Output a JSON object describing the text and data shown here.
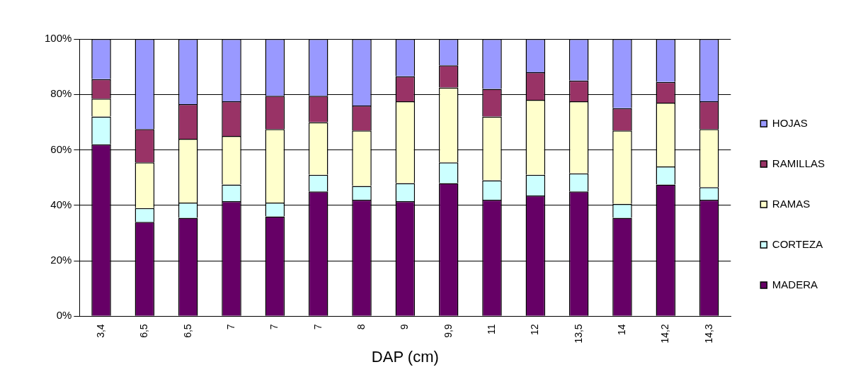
{
  "chart_data": {
    "type": "bar",
    "stacked": true,
    "xlabel": "DAP (cm)",
    "categories": [
      "3,4",
      "6,5",
      "6,5",
      "7",
      "7",
      "7",
      "8",
      "9",
      "9,9",
      "11",
      "12",
      "13,5",
      "14",
      "14,2",
      "14,3"
    ],
    "series": [
      {
        "name": "MADERA",
        "color": "#660066",
        "values": [
          62,
          34,
          35.5,
          41.5,
          36,
          45,
          42,
          41.5,
          48,
          42,
          43.5,
          45,
          35.5,
          47.5,
          42
        ]
      },
      {
        "name": "CORTEZA",
        "color": "#ccffff",
        "values": [
          10,
          5,
          5.5,
          6,
          5,
          6,
          5,
          6.5,
          7.5,
          7,
          7.5,
          6.5,
          5,
          6.5,
          4.5
        ]
      },
      {
        "name": "RAMAS",
        "color": "#ffffcc",
        "values": [
          6.5,
          16.5,
          23,
          17.5,
          26.5,
          19,
          20,
          29.5,
          27,
          23,
          27,
          26,
          26.5,
          23,
          21
        ]
      },
      {
        "name": "RAMILLAS",
        "color": "#993366",
        "values": [
          7,
          12,
          12.5,
          12.5,
          12,
          9.5,
          9,
          9,
          8,
          10,
          10,
          7.5,
          8,
          7.5,
          10
        ]
      },
      {
        "name": "HOJAS",
        "color": "#9999ff",
        "values": [
          14.5,
          32.5,
          23.5,
          22.5,
          20.5,
          20.5,
          24,
          13.5,
          9.5,
          18,
          12,
          15,
          25,
          15.5,
          22.5
        ]
      }
    ],
    "ylim": [
      0,
      100
    ],
    "yticks": [
      {
        "value": 0,
        "label": "0%"
      },
      {
        "value": 20,
        "label": "20%"
      },
      {
        "value": 40,
        "label": "40%"
      },
      {
        "value": 60,
        "label": "60%"
      },
      {
        "value": 80,
        "label": "80%"
      },
      {
        "value": 100,
        "label": "100%"
      }
    ],
    "grid": "y",
    "legend": "right"
  }
}
